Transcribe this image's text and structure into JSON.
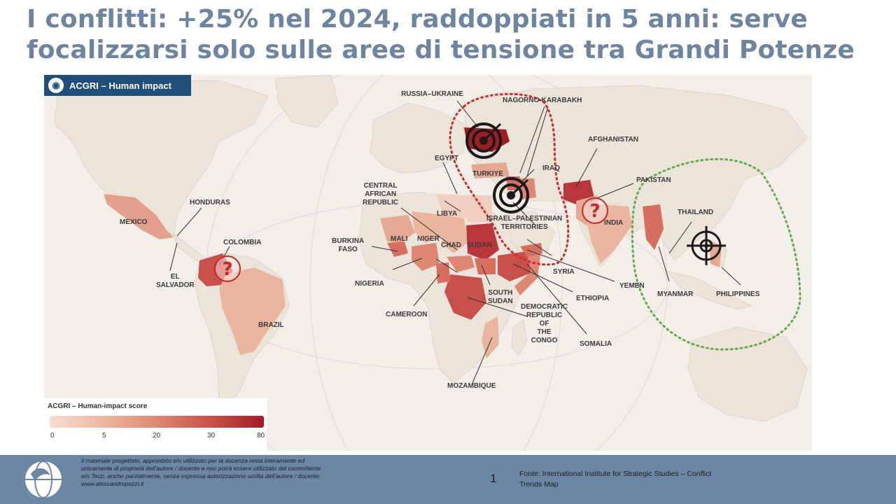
{
  "slide": {
    "title": "I conflitti: +25% nel 2024, raddoppiati in 5 anni: serve focalizzarsi solo sulle aree di tensione tra Grandi Potenze"
  },
  "map": {
    "badge": "ACGRI – Human impact",
    "badge_icon": "globe-icon",
    "labels": {
      "russia_ukraine": "RUSSIA–UKRAINE",
      "nagorno_karabakh": "NAGORNO-KARABAKH",
      "afghanistan": "AFGHANISTAN",
      "egypt": "EGYPT",
      "turkiye": "TURKIYE",
      "iraq": "IRAQ",
      "pakistan": "PAKISTAN",
      "central_african_republic": "CENTRAL\nAFRICAN\nREPUBLIC",
      "libya": "LIBYA",
      "israel_palestinian": "ISRAEL–PALESTINIAN\nTERRITORIES",
      "india": "INDIA",
      "thailand": "THAILAND",
      "honduras": "HONDURAS",
      "mexico": "MEXICO",
      "colombia": "COLOMBIA",
      "burkina_faso": "BURKINA\nFASO",
      "mali": "MALI",
      "niger": "NIGER",
      "chad": "CHAD",
      "sudan": "SUDAN",
      "el_salvador": "EL\nSALVADOR",
      "nigeria": "NIGERIA",
      "syria": "SYRIA",
      "yemen": "YEMEN",
      "myanmar": "MYANMAR",
      "philippines": "PHILIPPINES",
      "south_sudan": "SOUTH\nSUDAN",
      "ethiopia": "ETHIOPIA",
      "cameroon": "CAMEROON",
      "drc": "DEMOCRATIC\nREPUBLIC\nOF\nTHE\nCONGO",
      "brazil": "BRAZIL",
      "somalia": "SOMALIA",
      "mozambique": "MOZAMBIQUE"
    },
    "legend": {
      "title": "ACGRI – Human-impact score",
      "ticks": [
        "0",
        "5",
        "20",
        "30",
        "80"
      ],
      "colors": [
        "#f6ded2",
        "#efb7a1",
        "#de8774",
        "#c9504a",
        "#a11d24"
      ]
    },
    "annotation_colors": {
      "russia_zone": "#d9262b",
      "asia_pacific_zone": "#6aa84f",
      "question_mark": "#c62828",
      "target": "#1a1a1a"
    }
  },
  "footer": {
    "logo": "dove-globe-logo",
    "disclaimer": "Il materiale progettato, approntato e/o utilizzato per la docenza resta interamente ed unicamente di proprietà dell'autore / docente e non potrà essere utilizzato dal committente e/o Terzi, anche parzialmente, senza espressa autorizzazione scritta dell'autore / docente. www.alessandropozzi.it",
    "page_number": "1",
    "source": "Fonte: International Institute for Strategic Studies – Conflict Trends Map"
  }
}
